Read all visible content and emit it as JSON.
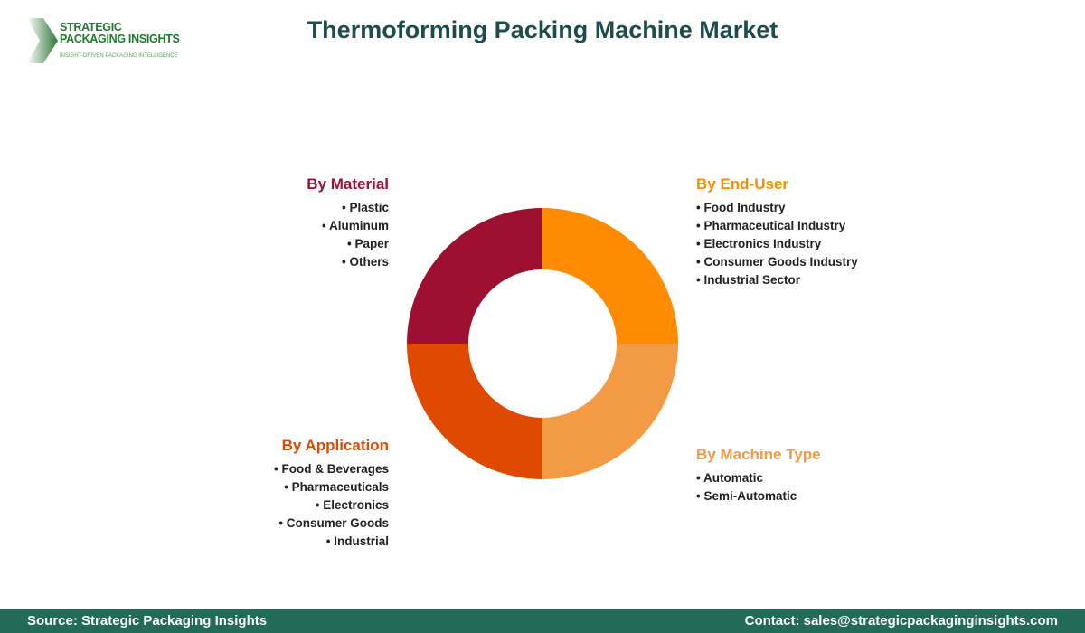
{
  "logo": {
    "line1": "STRATEGIC",
    "line2": "PACKAGING INSIGHTS",
    "tagline": "INSIGHT-DRIVEN PACKAGING INTELLIGENCE"
  },
  "title": "Thermoforming Packing Machine Market",
  "chart_data": {
    "type": "pie",
    "donut": true,
    "title": "Thermoforming Packing Machine Market",
    "categories": [
      "By End-User",
      "By Machine Type",
      "By Application",
      "By Material"
    ],
    "values": [
      25,
      25,
      25,
      25
    ],
    "colors": [
      "#FF8C00",
      "#F39A45",
      "#E04A00",
      "#9E1030"
    ],
    "segments": [
      {
        "label": "By End-User",
        "color": "#FF8C00",
        "items": [
          "Food Industry",
          "Pharmaceutical Industry",
          "Electronics Industry",
          "Consumer Goods Industry",
          "Industrial Sector"
        ]
      },
      {
        "label": "By Machine Type",
        "color": "#F39A45",
        "items": [
          "Automatic",
          "Semi-Automatic"
        ]
      },
      {
        "label": "By Application",
        "color": "#E04A00",
        "items": [
          "Food & Beverages",
          "Pharmaceuticals",
          "Electronics",
          "Consumer Goods",
          "Industrial"
        ]
      },
      {
        "label": "By Material",
        "color": "#9E1030",
        "items": [
          "Plastic",
          "Aluminum",
          "Paper",
          "Others"
        ]
      }
    ]
  },
  "footer": {
    "source": "Source: Strategic Packaging Insights",
    "contact": "Contact: sales@strategicpackaginginsights.com"
  }
}
